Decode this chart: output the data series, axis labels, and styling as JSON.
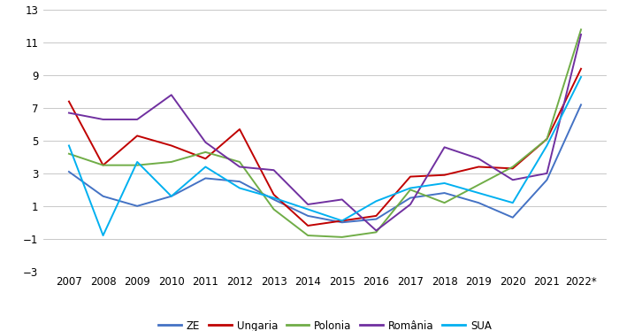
{
  "years": [
    "2007",
    "2008",
    "2009",
    "2010",
    "2011",
    "2012",
    "2013",
    "2014",
    "2015",
    "2016",
    "2017",
    "2018",
    "2019",
    "2020",
    "2021",
    "2022*"
  ],
  "series": {
    "ZE": [
      3.1,
      1.6,
      1.0,
      1.6,
      2.7,
      2.5,
      1.4,
      0.4,
      0.0,
      0.2,
      1.5,
      1.8,
      1.2,
      0.3,
      2.6,
      7.2
    ],
    "Ungaria": [
      7.4,
      3.5,
      5.3,
      4.7,
      3.9,
      5.7,
      1.7,
      -0.2,
      0.1,
      0.4,
      2.8,
      2.9,
      3.4,
      3.3,
      5.1,
      9.4
    ],
    "Polonia": [
      4.2,
      3.5,
      3.5,
      3.7,
      4.3,
      3.7,
      0.8,
      -0.8,
      -0.9,
      -0.6,
      2.0,
      1.2,
      2.3,
      3.4,
      5.1,
      11.8
    ],
    "România": [
      6.7,
      6.3,
      6.3,
      7.8,
      4.9,
      3.4,
      3.2,
      1.1,
      1.4,
      -0.5,
      1.1,
      4.6,
      3.9,
      2.6,
      3.0,
      11.5
    ],
    "SUA": [
      4.7,
      -0.8,
      3.7,
      1.6,
      3.4,
      2.1,
      1.5,
      0.8,
      0.1,
      1.3,
      2.1,
      2.4,
      1.8,
      1.2,
      4.7,
      8.9
    ]
  },
  "colors": {
    "ZE": "#4472C4",
    "Ungaria": "#C00000",
    "Polonia": "#70AD47",
    "România": "#7030A0",
    "SUA": "#00B0F0"
  },
  "ylim": [
    -3,
    13
  ],
  "yticks": [
    -3,
    -1,
    1,
    3,
    5,
    7,
    9,
    11,
    13
  ],
  "background_color": "#FFFFFF",
  "grid_color": "#BFBFBF"
}
